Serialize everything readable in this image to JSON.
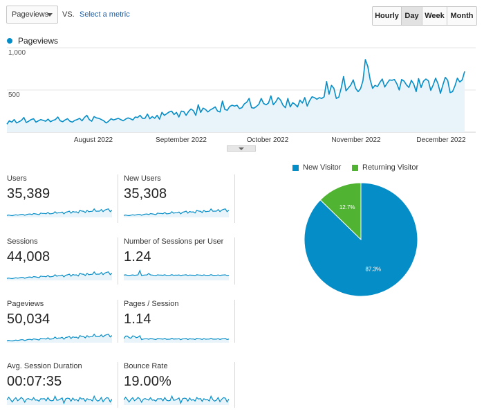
{
  "controls": {
    "metric_dropdown": "Pageviews",
    "vs_label": "VS.",
    "select_metric_link": "Select a metric",
    "granularity": [
      {
        "label": "Hourly",
        "active": false
      },
      {
        "label": "Day",
        "active": true
      },
      {
        "label": "Week",
        "active": false
      },
      {
        "label": "Month",
        "active": false
      }
    ]
  },
  "chart_data": {
    "type": "line",
    "series": [
      {
        "name": "Pageviews",
        "color": "#058dc7"
      }
    ],
    "ylim": [
      0,
      1000
    ],
    "yticks": [
      "1,000",
      "500"
    ],
    "x_labels": [
      "August 2022",
      "September 2022",
      "October 2022",
      "November 2022",
      "December 2022"
    ],
    "values": [
      95,
      135,
      120,
      150,
      110,
      125,
      140,
      175,
      115,
      130,
      150,
      160,
      120,
      135,
      150,
      140,
      130,
      155,
      125,
      140,
      150,
      180,
      135,
      125,
      145,
      160,
      130,
      120,
      140,
      150,
      165,
      135,
      175,
      200,
      150,
      130,
      185,
      170,
      165,
      150,
      135,
      110,
      130,
      160,
      145,
      155,
      165,
      150,
      135,
      155,
      170,
      160,
      145,
      180,
      175,
      200,
      165,
      165,
      215,
      160,
      185,
      165,
      200,
      155,
      235,
      200,
      220,
      240,
      250,
      210,
      235,
      180,
      250,
      245,
      200,
      245,
      275,
      255,
      200,
      325,
      235,
      285,
      270,
      240,
      265,
      280,
      300,
      250,
      240,
      370,
      270,
      260,
      305,
      320,
      310,
      320,
      280,
      290,
      335,
      355,
      400,
      290,
      285,
      305,
      330,
      400,
      340,
      325,
      345,
      430,
      325,
      360,
      410,
      380,
      320,
      290,
      400,
      300,
      350,
      330,
      300,
      380,
      345,
      410,
      310,
      375,
      420,
      410,
      390,
      410,
      400,
      420,
      600,
      450,
      555,
      520,
      400,
      415,
      520,
      660,
      490,
      525,
      560,
      620,
      520,
      480,
      515,
      610,
      860,
      780,
      620,
      520,
      555,
      540,
      590,
      630,
      535,
      580,
      620,
      615,
      625,
      575,
      500,
      625,
      605,
      560,
      530,
      615,
      570,
      480,
      635,
      530,
      605,
      630,
      610,
      495,
      560,
      640,
      575,
      460,
      560,
      650,
      615,
      470,
      480,
      550,
      640,
      595,
      620,
      720
    ]
  },
  "tiles": [
    {
      "label": "Users",
      "value": "35,389"
    },
    {
      "label": "New Users",
      "value": "35,308"
    },
    {
      "label": "Sessions",
      "value": "44,008"
    },
    {
      "label": "Number of Sessions per User",
      "value": "1.24"
    },
    {
      "label": "Pageviews",
      "value": "50,034"
    },
    {
      "label": "Pages / Session",
      "value": "1.14"
    },
    {
      "label": "Avg. Session Duration",
      "value": "00:07:35"
    },
    {
      "label": "Bounce Rate",
      "value": "19.00%"
    }
  ],
  "pie": {
    "type": "pie",
    "slices": [
      {
        "name": "New Visitor",
        "value": 87.3,
        "label": "87.3%",
        "color": "#058dc7"
      },
      {
        "name": "Returning Visitor",
        "value": 12.7,
        "label": "12.7%",
        "color": "#50b432"
      }
    ]
  },
  "colors": {
    "accent": "#058dc7",
    "area_fill": "#e8f4fa",
    "returning": "#50b432"
  }
}
